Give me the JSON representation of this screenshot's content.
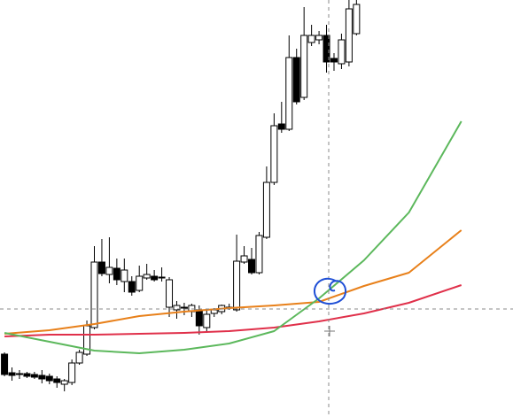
{
  "chart_data": {
    "type": "candlestick",
    "xlim": [
      -0.6,
      67.9
    ],
    "ylim": [
      0,
      471
    ],
    "up_color": "#ffffff",
    "down_color": "#000000",
    "open": [
      71,
      50,
      49,
      49,
      48,
      47,
      46,
      43,
      37,
      39,
      61,
      71,
      101,
      175,
      161,
      168,
      153,
      153,
      143,
      157,
      159,
      158,
      124,
      121,
      124,
      119,
      121,
      101,
      117,
      119,
      124,
      121,
      175,
      178,
      163,
      203,
      265,
      331,
      325,
      406,
      361,
      423,
      426,
      431,
      405,
      399,
      401,
      433
    ],
    "high": [
      73,
      56,
      53,
      51,
      51,
      53,
      49,
      46,
      43,
      65,
      76,
      109,
      193,
      201,
      203,
      179,
      179,
      159,
      171,
      173,
      166,
      169,
      158,
      131,
      129,
      128,
      126,
      121,
      123,
      127,
      128,
      206,
      193,
      191,
      209,
      283,
      343,
      356,
      431,
      416,
      463,
      443,
      436,
      443,
      411,
      433,
      471,
      471
    ],
    "low": [
      46,
      41,
      43,
      44,
      43,
      38,
      37,
      33,
      29,
      36,
      59,
      69,
      99,
      159,
      151,
      149,
      141,
      137,
      141,
      155,
      153,
      153,
      113,
      111,
      115,
      113,
      93,
      97,
      113,
      116,
      121,
      119,
      173,
      161,
      161,
      201,
      262,
      321,
      323,
      353,
      358,
      419,
      421,
      389,
      391,
      393,
      396,
      431
    ],
    "close": [
      48,
      47,
      48,
      46,
      45,
      43,
      41,
      39,
      41,
      61,
      73,
      103,
      175,
      162,
      169,
      155,
      166,
      141,
      159,
      161,
      155,
      158,
      155,
      126,
      124,
      126,
      103,
      116,
      121,
      126,
      124,
      176,
      182,
      163,
      205,
      265,
      329,
      325,
      406,
      356,
      431,
      431,
      431,
      401,
      401,
      426,
      461,
      466
    ],
    "series": [
      {
        "color": "#e8801a",
        "x": [
          0,
          6,
          12,
          18,
          24,
          30,
          36,
          42,
          48,
          54,
          61
        ],
        "values": [
          94,
          98,
          105,
          114,
          119,
          123,
          126,
          130,
          148,
          163,
          211
        ]
      },
      {
        "color": "#e0304a",
        "x": [
          0,
          6,
          12,
          18,
          24,
          30,
          36,
          42,
          48,
          54,
          61
        ],
        "values": [
          91,
          93,
          93,
          94,
          95,
          97,
          101,
          108,
          117,
          129,
          149
        ]
      },
      {
        "color": "#5cb85c",
        "x": [
          0,
          6,
          12,
          18,
          24,
          30,
          36,
          42,
          48,
          54,
          61
        ],
        "values": [
          95,
          85,
          75,
          72,
          76,
          83,
          97,
          134,
          177,
          231,
          334
        ]
      }
    ]
  }
}
